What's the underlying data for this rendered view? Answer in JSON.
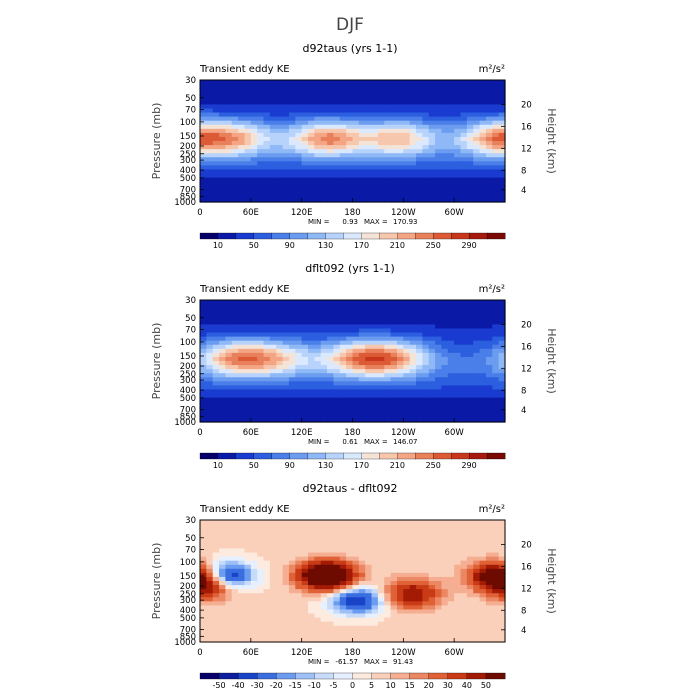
{
  "figure": {
    "title": "DJF"
  },
  "chart_data": [
    {
      "type": "heatmap",
      "title": "d92taus (yrs 1-1)",
      "subtitle": "Transient eddy KE",
      "units": "m²/s²",
      "ylabel": "Pressure (mb)",
      "ylabel_right": "Height (km)",
      "x_ticks": [
        "0",
        "60E",
        "120E",
        "180",
        "120W",
        "60W"
      ],
      "y_ticks": [
        "30",
        "50",
        "70",
        "100",
        "150",
        "200",
        "250",
        "300",
        "400",
        "500",
        "700",
        "850",
        "1000"
      ],
      "height_ticks": [
        "20",
        "16",
        "12",
        "8",
        "4"
      ],
      "stats": {
        "min_label": "MIN =",
        "min": "0.93",
        "max_label": "MAX =",
        "max": "170.93"
      },
      "colorbar": {
        "labels": [
          "10",
          "50",
          "90",
          "130",
          "170",
          "210",
          "250",
          "290"
        ]
      },
      "jets": [
        {
          "lon": 45,
          "peak": 125
        },
        {
          "lon": 150,
          "peak": 171
        },
        {
          "lon": 235,
          "peak": 140
        },
        {
          "lon": 350,
          "peak": 160
        }
      ]
    },
    {
      "type": "heatmap",
      "title": "dflt092 (yrs 1-1)",
      "subtitle": "Transient eddy KE",
      "units": "m²/s²",
      "ylabel": "Pressure (mb)",
      "ylabel_right": "Height (km)",
      "x_ticks": [
        "0",
        "60E",
        "120E",
        "180",
        "120W",
        "60W"
      ],
      "y_ticks": [
        "30",
        "50",
        "70",
        "100",
        "150",
        "200",
        "250",
        "300",
        "400",
        "500",
        "700",
        "850",
        "1000"
      ],
      "height_ticks": [
        "20",
        "16",
        "12",
        "8",
        "4"
      ],
      "stats": {
        "min_label": "MIN =",
        "min": "0.61",
        "max_label": "MAX =",
        "max": "146.07"
      },
      "colorbar": {
        "labels": [
          "10",
          "50",
          "90",
          "130",
          "170",
          "210",
          "250",
          "290"
        ]
      },
      "jets": [
        {
          "lon": 40,
          "peak": 146
        },
        {
          "lon": 90,
          "peak": 110
        },
        {
          "lon": 185,
          "peak": 140
        },
        {
          "lon": 230,
          "peak": 135
        }
      ]
    },
    {
      "type": "heatmap",
      "title": "d92taus - dflt092",
      "subtitle": "Transient eddy KE",
      "units": "m²/s²",
      "ylabel": "Pressure (mb)",
      "ylabel_right": "Height (km)",
      "x_ticks": [
        "0",
        "60E",
        "120E",
        "180",
        "120W",
        "60W"
      ],
      "y_ticks": [
        "30",
        "50",
        "70",
        "100",
        "150",
        "200",
        "250",
        "300",
        "400",
        "500",
        "700",
        "850",
        "1000"
      ],
      "height_ticks": [
        "20",
        "16",
        "12",
        "8",
        "4"
      ],
      "stats": {
        "min_label": "MIN =",
        "min": "-61.57",
        "max_label": "MAX =",
        "max": "91.43"
      },
      "colorbar": {
        "labels": [
          "-50",
          "-40",
          "-30",
          "-20",
          "-15",
          "-10",
          "-5",
          "0",
          "5",
          "10",
          "15",
          "20",
          "30",
          "40",
          "50"
        ]
      },
      "features": [
        {
          "lon": 30,
          "p": 150,
          "value": -55
        },
        {
          "lon": 10,
          "p": 200,
          "value": 40
        },
        {
          "lon": 150,
          "p": 150,
          "value": 91
        },
        {
          "lon": 185,
          "p": 300,
          "value": -45
        },
        {
          "lon": 250,
          "p": 250,
          "value": 45
        },
        {
          "lon": 350,
          "p": 150,
          "value": 60
        }
      ]
    }
  ],
  "colors": {
    "seq": [
      "#08006a",
      "#0a1aa6",
      "#1a3bd0",
      "#2c5ee0",
      "#4a7ee8",
      "#6b9cf0",
      "#8fb8f6",
      "#b7d3fb",
      "#dbe9ff",
      "#f4e4d8",
      "#f6c7ad",
      "#f3a584",
      "#e9805c",
      "#dc5a36",
      "#c8361c",
      "#a61a0e",
      "#7a0803"
    ],
    "div": [
      "#08006a",
      "#0d1f9e",
      "#1a44c8",
      "#3a6ee0",
      "#6b9cf0",
      "#9ec0f7",
      "#c7dcfb",
      "#e6f0ff",
      "#fdebe0",
      "#fbd0bb",
      "#f5ae91",
      "#ec8763",
      "#e06136",
      "#c93a16",
      "#a31a05",
      "#6e0b00"
    ]
  }
}
